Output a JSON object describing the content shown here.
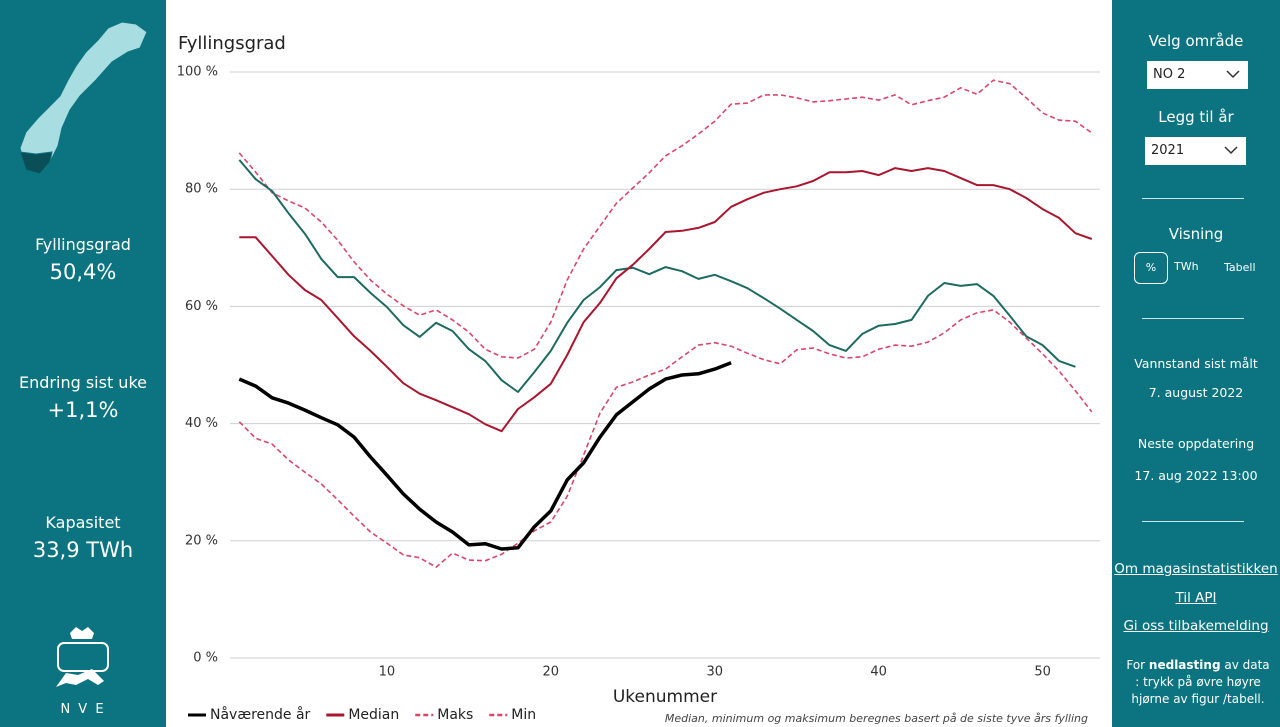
{
  "sidebar": {
    "stats": [
      {
        "label": "Fyllingsgrad",
        "value": "50,4%"
      },
      {
        "label": "Endring sist uke",
        "value": "+1,1%"
      },
      {
        "label": "Kapasitet",
        "value": "33,9 TWh"
      }
    ],
    "logo_text": "N V E"
  },
  "controls": {
    "area_label": "Velg område",
    "area_value": "NO 2",
    "year_label": "Legg til år",
    "year_value": "2021",
    "view_label": "Visning",
    "view_options": [
      "%",
      "TWh",
      "Tabell"
    ],
    "measured_label": "Vannstand sist målt",
    "measured_value": "7. august 2022",
    "next_label": "Neste oppdatering",
    "next_value": "17. aug 2022 13:00",
    "links": [
      "Om magasinstatistikken",
      "Til API",
      "Gi oss tilbakemelding"
    ],
    "download_note": [
      "For ",
      "nedlasting",
      " av data : trykk på øvre høyre hjørne av figur /tabell."
    ]
  },
  "chart_data": {
    "type": "line",
    "title": "Fyllingsgrad",
    "x_label": "Ukenummer",
    "note": "Median, minimum og maksimum beregnes basert på de siste tyve års fylling",
    "x": [
      1,
      2,
      3,
      4,
      5,
      6,
      7,
      8,
      9,
      10,
      11,
      12,
      13,
      14,
      15,
      16,
      17,
      18,
      19,
      20,
      21,
      22,
      23,
      24,
      25,
      26,
      27,
      28,
      29,
      30,
      31,
      32,
      33,
      34,
      35,
      36,
      37,
      38,
      39,
      40,
      41,
      42,
      43,
      44,
      45,
      46,
      47,
      48,
      49,
      50,
      51,
      52,
      53
    ],
    "xlim": [
      0.43,
      53.5
    ],
    "xticks": [
      10,
      20,
      30,
      40,
      50
    ],
    "ylim": [
      0,
      100
    ],
    "yticks": [
      {
        "value": 0,
        "label": "0 %"
      },
      {
        "value": 20,
        "label": "20 %"
      },
      {
        "value": 40,
        "label": "40 %"
      },
      {
        "value": 60,
        "label": "60 %"
      },
      {
        "value": 80,
        "label": "80 %"
      },
      {
        "value": 100,
        "label": "100 %"
      }
    ],
    "grid": true,
    "legend": "bottom",
    "series": [
      {
        "name": "Maks",
        "color": "#d8476b",
        "dashed": true,
        "width": 1.6,
        "values": [
          86.2,
          82.9,
          79.4,
          78.0,
          76.8,
          74.4,
          71.3,
          67.6,
          64.5,
          62.1,
          60.1,
          58.5,
          59.4,
          57.7,
          55.6,
          52.7,
          51.4,
          51.2,
          52.7,
          57.3,
          64.5,
          69.8,
          73.7,
          77.6,
          80.2,
          82.8,
          85.7,
          87.4,
          89.4,
          91.6,
          94.5,
          94.7,
          96.1,
          96.1,
          95.6,
          94.9,
          95.1,
          95.4,
          95.7,
          95.2,
          96.1,
          94.4,
          95.1,
          95.7,
          97.3,
          96.2,
          98.6,
          98.0,
          95.6,
          93.0,
          91.8,
          91.6,
          89.6
        ]
      },
      {
        "name": "Min",
        "color": "#d8476b",
        "dashed": true,
        "width": 1.6,
        "values": [
          40.3,
          37.5,
          36.5,
          33.8,
          31.7,
          29.7,
          27.0,
          24.2,
          21.5,
          19.6,
          17.6,
          17.1,
          15.5,
          17.9,
          16.7,
          16.6,
          17.7,
          19.6,
          21.7,
          23.2,
          27.6,
          34.6,
          41.8,
          46.2,
          47.1,
          48.3,
          49.3,
          51.4,
          53.4,
          53.8,
          53.2,
          52.0,
          50.9,
          50.2,
          52.6,
          52.9,
          51.9,
          51.2,
          51.4,
          52.7,
          53.4,
          53.2,
          53.9,
          55.5,
          57.7,
          58.9,
          59.4,
          57.3,
          54.6,
          51.9,
          49.0,
          45.6,
          42.0
        ]
      },
      {
        "color": "#1d6b60",
        "dashed": false,
        "width": 2,
        "values": [
          85.0,
          81.7,
          79.7,
          75.9,
          72.4,
          68.1,
          65.0,
          65.0,
          62.3,
          59.9,
          56.8,
          54.8,
          57.2,
          55.8,
          52.7,
          50.7,
          47.4,
          45.4,
          48.8,
          52.4,
          57.2,
          61.1,
          63.3,
          66.2,
          66.6,
          65.5,
          66.7,
          66.0,
          64.7,
          65.4,
          64.3,
          63.1,
          61.4,
          59.6,
          57.7,
          55.8,
          53.4,
          52.4,
          55.3,
          56.7,
          57.0,
          57.7,
          61.8,
          64.0,
          63.5,
          63.8,
          61.8,
          58.4,
          54.9,
          53.4,
          50.7,
          49.7,
          null
        ]
      },
      {
        "name": "Median",
        "color": "#a8172f",
        "dashed": false,
        "width": 2,
        "values": [
          71.8,
          71.8,
          68.6,
          65.4,
          62.8,
          61.1,
          58.0,
          54.9,
          52.4,
          49.7,
          46.9,
          45.1,
          44.0,
          42.8,
          41.6,
          39.9,
          38.7,
          42.5,
          44.5,
          46.8,
          51.7,
          57.3,
          60.6,
          64.8,
          67.1,
          69.8,
          72.7,
          72.9,
          73.4,
          74.4,
          77.0,
          78.3,
          79.4,
          80.0,
          80.5,
          81.4,
          82.9,
          82.9,
          83.1,
          82.4,
          83.6,
          83.1,
          83.6,
          83.1,
          81.9,
          80.7,
          80.7,
          80.0,
          78.5,
          76.6,
          75.1,
          72.5,
          71.5
        ]
      },
      {
        "name": "Nåværende år",
        "color": "#000000",
        "dashed": false,
        "width": 3.5,
        "values": [
          47.6,
          46.4,
          44.4,
          43.5,
          42.3,
          41.0,
          39.8,
          37.7,
          34.3,
          31.2,
          28.0,
          25.4,
          23.2,
          21.5,
          19.3,
          19.5,
          18.6,
          18.8,
          22.4,
          25.1,
          30.4,
          33.3,
          37.7,
          41.5,
          43.7,
          45.9,
          47.6,
          48.3,
          48.5,
          49.3,
          50.4,
          null,
          null,
          null,
          null,
          null,
          null,
          null,
          null,
          null,
          null,
          null,
          null,
          null,
          null,
          null,
          null,
          null,
          null,
          null,
          null,
          null,
          null
        ]
      }
    ],
    "legend_order": [
      4,
      3,
      0,
      1
    ]
  }
}
